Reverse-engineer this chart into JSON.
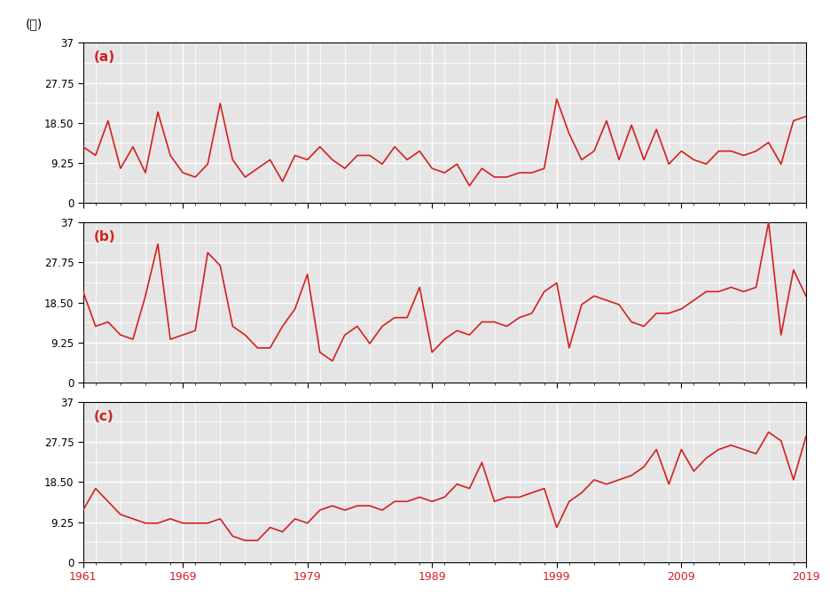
{
  "years": [
    1961,
    1962,
    1963,
    1964,
    1965,
    1966,
    1967,
    1968,
    1969,
    1970,
    1971,
    1972,
    1973,
    1974,
    1975,
    1976,
    1977,
    1978,
    1979,
    1980,
    1981,
    1982,
    1983,
    1984,
    1985,
    1986,
    1987,
    1988,
    1989,
    1990,
    1991,
    1992,
    1993,
    1994,
    1995,
    1996,
    1997,
    1998,
    1999,
    2000,
    2001,
    2002,
    2003,
    2004,
    2005,
    2006,
    2007,
    2008,
    2009,
    2010,
    2011,
    2012,
    2013,
    2014,
    2015,
    2016,
    2017,
    2018,
    2019
  ],
  "series_a": [
    13,
    11,
    19,
    8,
    13,
    7,
    21,
    11,
    7,
    6,
    9,
    23,
    10,
    6,
    8,
    10,
    5,
    11,
    10,
    13,
    10,
    8,
    11,
    11,
    9,
    13,
    10,
    12,
    8,
    7,
    9,
    4,
    8,
    6,
    6,
    7,
    7,
    8,
    24,
    16,
    10,
    12,
    19,
    10,
    18,
    10,
    17,
    9,
    12,
    10,
    9,
    12,
    12,
    11,
    12,
    14,
    9,
    19,
    20
  ],
  "series_b": [
    21,
    13,
    14,
    11,
    10,
    20,
    32,
    10,
    11,
    12,
    30,
    27,
    13,
    11,
    8,
    8,
    13,
    17,
    25,
    7,
    5,
    11,
    13,
    9,
    13,
    15,
    15,
    22,
    7,
    10,
    12,
    11,
    14,
    14,
    13,
    15,
    16,
    21,
    23,
    8,
    18,
    20,
    19,
    18,
    14,
    13,
    16,
    16,
    17,
    19,
    21,
    21,
    22,
    21,
    22,
    37,
    11,
    26,
    20
  ],
  "series_c": [
    12,
    17,
    14,
    11,
    10,
    9,
    9,
    10,
    9,
    9,
    9,
    10,
    6,
    5,
    5,
    8,
    7,
    10,
    9,
    12,
    13,
    12,
    13,
    13,
    12,
    14,
    14,
    15,
    14,
    15,
    18,
    17,
    23,
    14,
    15,
    15,
    16,
    17,
    8,
    14,
    16,
    19,
    18,
    19,
    20,
    22,
    26,
    18,
    26,
    21,
    24,
    26,
    27,
    26,
    25,
    30,
    28,
    19,
    29
  ],
  "yticks": [
    0,
    9.25,
    18.5,
    27.75,
    37
  ],
  "ytick_labels": [
    "0",
    "9.25",
    "18.50",
    "27.75",
    "37"
  ],
  "xtick_labels": [
    "1961",
    "1969",
    "1979",
    "1989",
    "1999",
    "2009",
    "2019"
  ],
  "xtick_positions": [
    1961,
    1969,
    1979,
    1989,
    1999,
    2009,
    2019
  ],
  "line_color": "#d42020",
  "label_color": "#d42020",
  "bg_color": "#e5e5e5",
  "panel_labels": [
    "(a)",
    "(b)",
    "(c)"
  ],
  "ylabel": "(天)",
  "ymax": 37,
  "ymin": 0
}
